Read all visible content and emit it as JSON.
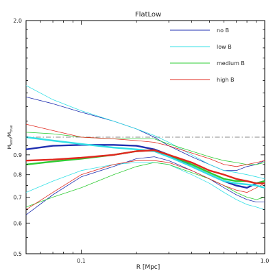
{
  "chart_data": {
    "type": "line",
    "title": "FlatLow",
    "xlabel": "R [Mpc]",
    "ylabel_main": "M",
    "ylabel_sub1": "lens",
    "ylabel_mid": "/M",
    "ylabel_sub2": "true",
    "xscale": "log",
    "yscale": "log",
    "xlim": [
      0.05,
      1.0
    ],
    "ylim": [
      0.5,
      2.0
    ],
    "x_ticks": [
      {
        "value": 0.1,
        "label": "0.1"
      },
      {
        "value": 1.0,
        "label": "1.0"
      }
    ],
    "y_ticks": [
      {
        "value": 0.5,
        "label": "0.5"
      },
      {
        "value": 0.6,
        "label": "0.6"
      },
      {
        "value": 0.7,
        "label": "0.7"
      },
      {
        "value": 0.8,
        "label": "0.8"
      },
      {
        "value": 0.9,
        "label": "0.9"
      },
      {
        "value": 2.0,
        "label": "2.0"
      }
    ],
    "reference_line": {
      "y": 1.0,
      "style": "dash-dot",
      "color": "#888888"
    },
    "legend_position": "top-right",
    "legend": [
      {
        "name": "no B",
        "color": "#1f2fb0"
      },
      {
        "name": "low B",
        "color": "#33e0e6"
      },
      {
        "name": "medium B",
        "color": "#2ecc33"
      },
      {
        "name": "high B",
        "color": "#e0281f"
      }
    ],
    "series": [
      {
        "name": "no B",
        "color": "#1f2fb0",
        "role": "mean",
        "x": [
          0.05,
          0.07,
          0.1,
          0.15,
          0.2,
          0.25,
          0.3,
          0.4,
          0.5,
          0.6,
          0.7,
          0.8,
          0.9,
          1.0
        ],
        "y": [
          0.93,
          0.95,
          0.955,
          0.955,
          0.95,
          0.93,
          0.9,
          0.84,
          0.8,
          0.77,
          0.75,
          0.74,
          0.76,
          0.77
        ]
      },
      {
        "name": "no B",
        "color": "#1f2fb0",
        "role": "upper",
        "x": [
          0.05,
          0.07,
          0.1,
          0.15,
          0.2,
          0.25,
          0.3,
          0.4,
          0.5,
          0.6,
          0.7,
          0.8,
          0.9,
          1.0
        ],
        "y": [
          1.27,
          1.22,
          1.16,
          1.1,
          1.05,
          1.0,
          0.95,
          0.89,
          0.85,
          0.82,
          0.82,
          0.84,
          0.85,
          0.87
        ]
      },
      {
        "name": "no B",
        "color": "#1f2fb0",
        "role": "lower",
        "x": [
          0.05,
          0.07,
          0.1,
          0.15,
          0.2,
          0.25,
          0.3,
          0.4,
          0.5,
          0.6,
          0.7,
          0.8,
          0.9,
          1.0
        ],
        "y": [
          0.63,
          0.71,
          0.79,
          0.84,
          0.88,
          0.89,
          0.87,
          0.82,
          0.78,
          0.74,
          0.71,
          0.69,
          0.68,
          0.68
        ]
      },
      {
        "name": "low B",
        "color": "#33e0e6",
        "role": "mean",
        "x": [
          0.05,
          0.07,
          0.1,
          0.15,
          0.2,
          0.25,
          0.3,
          0.4,
          0.5,
          0.6,
          0.7,
          0.8,
          0.9,
          1.0
        ],
        "y": [
          1.0,
          0.98,
          0.96,
          0.94,
          0.93,
          0.92,
          0.89,
          0.84,
          0.8,
          0.77,
          0.76,
          0.755,
          0.75,
          0.74
        ]
      },
      {
        "name": "low B",
        "color": "#33e0e6",
        "role": "upper",
        "x": [
          0.05,
          0.07,
          0.1,
          0.15,
          0.2,
          0.25,
          0.3,
          0.4,
          0.5,
          0.6,
          0.7,
          0.8,
          0.9,
          1.0
        ],
        "y": [
          1.36,
          1.25,
          1.17,
          1.1,
          1.05,
          1.01,
          0.97,
          0.9,
          0.85,
          0.82,
          0.81,
          0.8,
          0.79,
          0.78
        ]
      },
      {
        "name": "low B",
        "color": "#33e0e6",
        "role": "lower",
        "x": [
          0.05,
          0.07,
          0.1,
          0.15,
          0.2,
          0.25,
          0.3,
          0.4,
          0.5,
          0.6,
          0.7,
          0.8,
          0.9,
          1.0
        ],
        "y": [
          0.72,
          0.77,
          0.82,
          0.85,
          0.86,
          0.86,
          0.85,
          0.8,
          0.76,
          0.72,
          0.69,
          0.67,
          0.66,
          0.65
        ]
      },
      {
        "name": "medium B",
        "color": "#2ecc33",
        "role": "mean",
        "x": [
          0.05,
          0.07,
          0.1,
          0.15,
          0.2,
          0.25,
          0.3,
          0.4,
          0.5,
          0.6,
          0.7,
          0.8,
          0.9,
          1.0
        ],
        "y": [
          0.85,
          0.865,
          0.88,
          0.9,
          0.92,
          0.925,
          0.9,
          0.85,
          0.81,
          0.78,
          0.77,
          0.77,
          0.76,
          0.77
        ]
      },
      {
        "name": "medium B",
        "color": "#2ecc33",
        "role": "upper",
        "x": [
          0.05,
          0.07,
          0.1,
          0.15,
          0.2,
          0.25,
          0.3,
          0.4,
          0.5,
          0.6,
          0.7,
          0.8,
          0.9,
          1.0
        ],
        "y": [
          1.03,
          1.02,
          1.0,
          0.99,
          0.99,
          0.99,
          0.96,
          0.92,
          0.89,
          0.87,
          0.86,
          0.85,
          0.85,
          0.86
        ]
      },
      {
        "name": "medium B",
        "color": "#2ecc33",
        "role": "lower",
        "x": [
          0.05,
          0.07,
          0.1,
          0.15,
          0.2,
          0.25,
          0.3,
          0.4,
          0.5,
          0.6,
          0.7,
          0.8,
          0.9,
          1.0
        ],
        "y": [
          0.66,
          0.7,
          0.74,
          0.8,
          0.84,
          0.86,
          0.85,
          0.81,
          0.78,
          0.75,
          0.72,
          0.7,
          0.69,
          0.7
        ]
      },
      {
        "name": "high B",
        "color": "#e0281f",
        "role": "mean",
        "x": [
          0.05,
          0.07,
          0.1,
          0.15,
          0.2,
          0.25,
          0.3,
          0.4,
          0.5,
          0.6,
          0.7,
          0.8,
          0.9,
          1.0
        ],
        "y": [
          0.87,
          0.875,
          0.885,
          0.9,
          0.92,
          0.925,
          0.9,
          0.86,
          0.82,
          0.8,
          0.78,
          0.77,
          0.76,
          0.76
        ]
      },
      {
        "name": "high B",
        "color": "#e0281f",
        "role": "upper",
        "x": [
          0.05,
          0.07,
          0.1,
          0.15,
          0.2,
          0.25,
          0.3,
          0.4,
          0.5,
          0.6,
          0.7,
          0.8,
          0.9,
          1.0
        ],
        "y": [
          1.08,
          1.04,
          1.0,
          0.99,
          0.98,
          0.97,
          0.95,
          0.91,
          0.88,
          0.85,
          0.84,
          0.85,
          0.86,
          0.87
        ]
      },
      {
        "name": "high B",
        "color": "#e0281f",
        "role": "lower",
        "x": [
          0.05,
          0.07,
          0.1,
          0.15,
          0.2,
          0.25,
          0.3,
          0.4,
          0.5,
          0.6,
          0.7,
          0.8,
          0.9,
          1.0
        ],
        "y": [
          0.65,
          0.72,
          0.8,
          0.85,
          0.87,
          0.87,
          0.86,
          0.82,
          0.78,
          0.75,
          0.73,
          0.72,
          0.74,
          0.76
        ]
      }
    ]
  }
}
